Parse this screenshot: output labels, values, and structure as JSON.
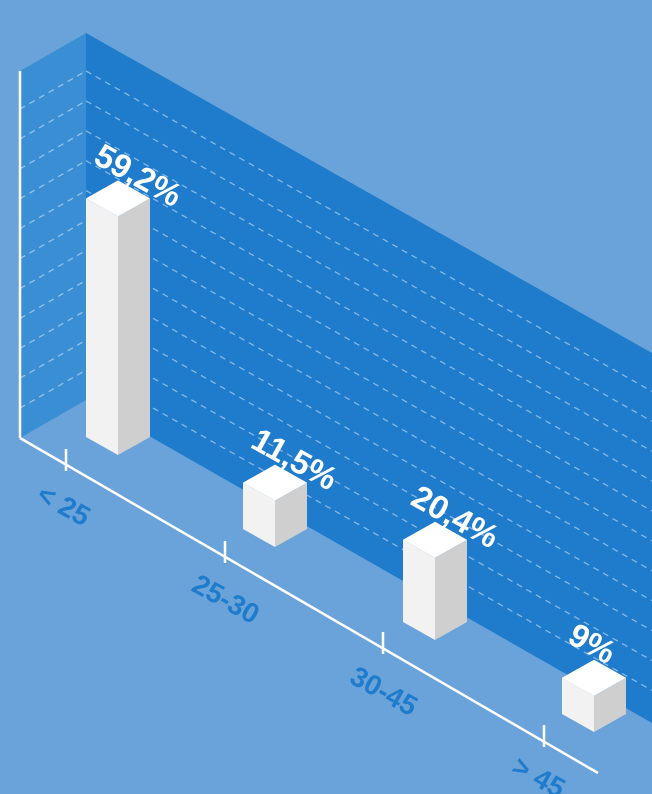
{
  "chart_data": {
    "type": "bar",
    "categories": [
      "< 25",
      "25-30",
      "30-45",
      "> 45"
    ],
    "values": [
      59.2,
      11.5,
      20.4,
      9
    ],
    "value_labels": [
      "59,2%",
      "11,5%",
      "20,4%",
      "9%"
    ],
    "style": "3d-isometric",
    "grid": true
  },
  "colors": {
    "background": "#6aa3d9",
    "wall": "#1f7ccc",
    "side_wall": "#3a8fd4",
    "bar_left_face": "#f2f2f2",
    "bar_right_face": "#cfcfcf",
    "bar_top_face": "#ffffff",
    "axis": "#ffffff",
    "value_label": "#ffffff",
    "category_label": "#1f7ccc"
  }
}
